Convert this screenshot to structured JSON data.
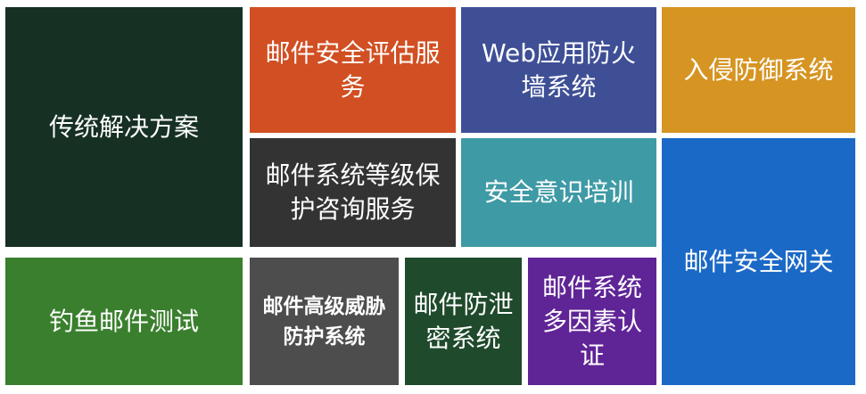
{
  "tiles": {
    "traditional": {
      "label": "传统解决方案",
      "color": "#163024"
    },
    "assessment": {
      "label": "邮件安全评估服务",
      "color": "#d14f22"
    },
    "waf": {
      "label": "Web应用防火墙系统",
      "color": "#3e4f96"
    },
    "ips": {
      "label": "入侵防御系统",
      "color": "#d69422"
    },
    "grading": {
      "label": "邮件系统等级保护咨询服务",
      "color": "#333333"
    },
    "training": {
      "label": "安全意识培训",
      "color": "#3e9aa5"
    },
    "gateway": {
      "label": "邮件安全网关",
      "color": "#1b69c6"
    },
    "phishing": {
      "label": "钓鱼邮件测试",
      "color": "#3a7f2e"
    },
    "apt": {
      "label": "邮件高级威胁防护系统",
      "color": "#4d4d4d"
    },
    "dlp": {
      "label": "邮件防泄密系统",
      "color": "#1f4a2c"
    },
    "mfa": {
      "label": "邮件系统多因素认证",
      "color": "#5f2496"
    }
  }
}
